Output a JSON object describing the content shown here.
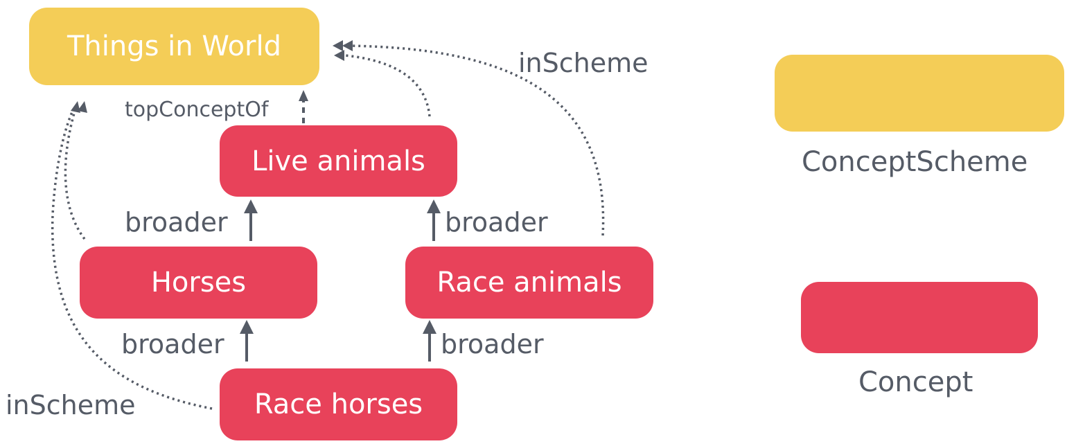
{
  "nodes": {
    "things_in_world": "Things in World",
    "live_animals": "Live animals",
    "horses": "Horses",
    "race_animals": "Race animals",
    "race_horses": "Race horses"
  },
  "edge_labels": {
    "top_concept_of": "topConceptOf",
    "in_scheme_right": "inScheme",
    "in_scheme_left": "inScheme",
    "broader_horses_live": "broader",
    "broader_race_animals_live": "broader",
    "broader_race_horses_horses": "broader",
    "broader_race_horses_race_animals": "broader"
  },
  "legend": {
    "concept_scheme": "ConceptScheme",
    "concept": "Concept"
  },
  "colors": {
    "concept_scheme": "#f4cd57",
    "concept": "#e8425a",
    "edge": "#555b66"
  }
}
